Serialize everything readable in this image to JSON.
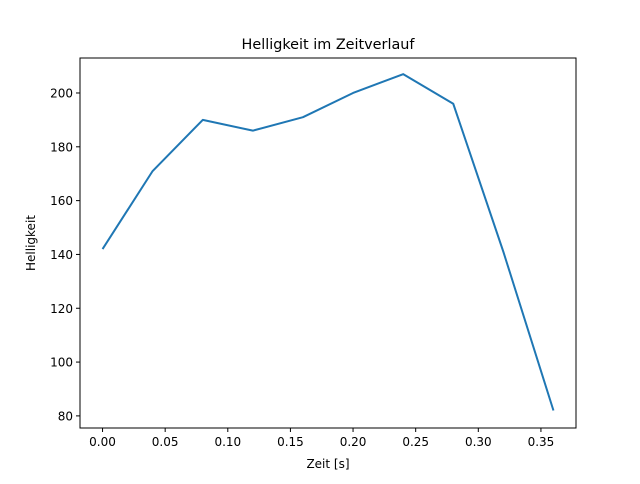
{
  "chart_data": {
    "type": "line",
    "title": "Helligkeit im Zeitverlauf",
    "xlabel": "Zeit [s]",
    "ylabel": "Helligkeit",
    "x": [
      0.0,
      0.04,
      0.08,
      0.12,
      0.16,
      0.2,
      0.24,
      0.28,
      0.32,
      0.36
    ],
    "series": [
      {
        "name": "Helligkeit",
        "color": "#1f77b4",
        "values": [
          142,
          171,
          190,
          186,
          191,
          200,
          207,
          196,
          141,
          82
        ]
      }
    ],
    "xlim": [
      -0.018,
      0.378
    ],
    "ylim": [
      75.5,
      213
    ],
    "xticks": [
      "0.00",
      "0.05",
      "0.10",
      "0.15",
      "0.20",
      "0.25",
      "0.30",
      "0.35"
    ],
    "yticks": [
      "80",
      "100",
      "120",
      "140",
      "160",
      "180",
      "200"
    ],
    "grid": false
  }
}
